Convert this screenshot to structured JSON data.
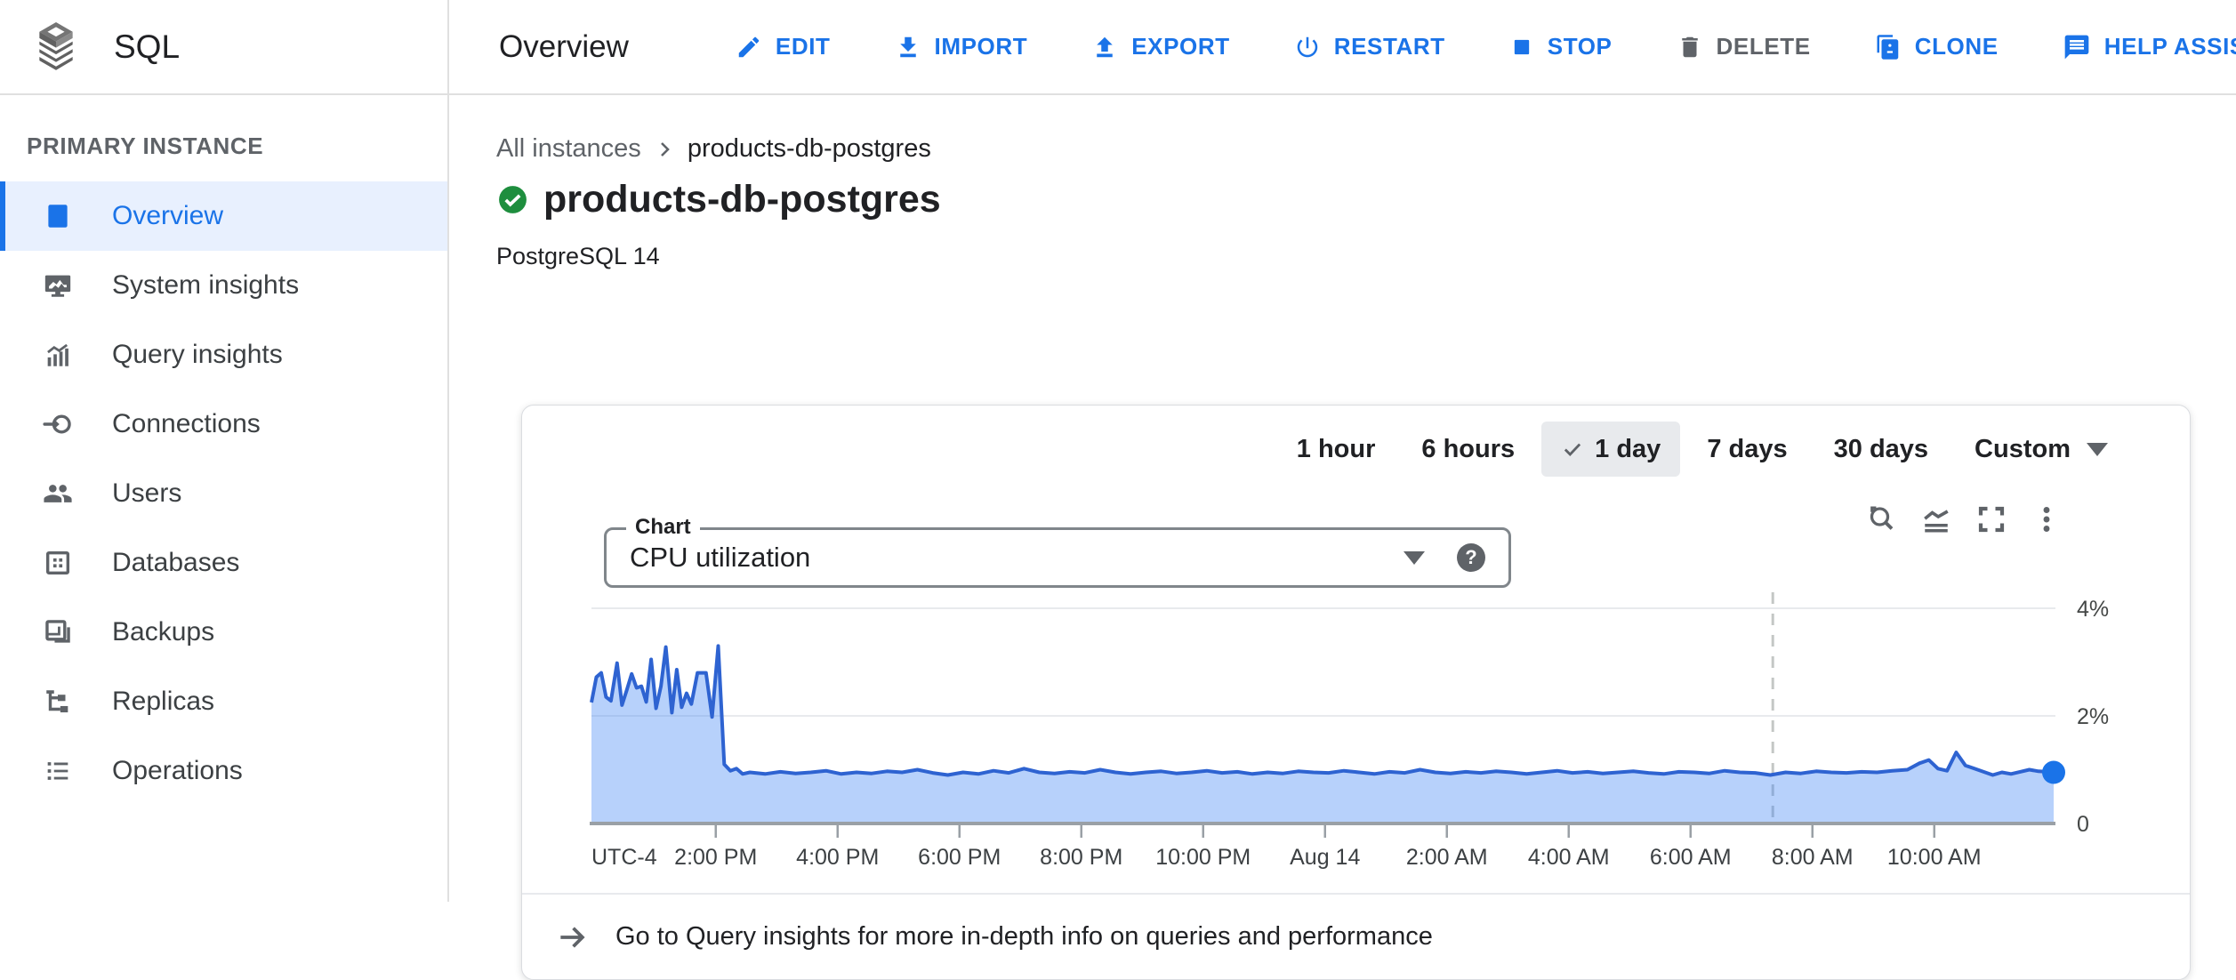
{
  "header": {
    "product": "SQL",
    "page_title": "Overview",
    "actions": [
      {
        "label": "EDIT",
        "icon": "pencil-icon",
        "disabled": false
      },
      {
        "label": "IMPORT",
        "icon": "import-icon",
        "disabled": false
      },
      {
        "label": "EXPORT",
        "icon": "export-icon",
        "disabled": false
      },
      {
        "label": "RESTART",
        "icon": "power-icon",
        "disabled": false
      },
      {
        "label": "STOP",
        "icon": "stop-icon",
        "disabled": false
      },
      {
        "label": "DELETE",
        "icon": "trash-icon",
        "disabled": true
      },
      {
        "label": "CLONE",
        "icon": "clone-icon",
        "disabled": false
      },
      {
        "label": "HELP ASSISTANT",
        "icon": "chat-icon",
        "disabled": false
      }
    ]
  },
  "sidebar": {
    "section": "PRIMARY INSTANCE",
    "items": [
      {
        "label": "Overview",
        "icon": "instance-icon",
        "selected": true
      },
      {
        "label": "System insights",
        "icon": "monitor-chart-icon",
        "selected": false
      },
      {
        "label": "Query insights",
        "icon": "bar-trend-icon",
        "selected": false
      },
      {
        "label": "Connections",
        "icon": "plug-icon",
        "selected": false
      },
      {
        "label": "Users",
        "icon": "people-icon",
        "selected": false
      },
      {
        "label": "Databases",
        "icon": "database-grid-icon",
        "selected": false
      },
      {
        "label": "Backups",
        "icon": "backup-icon",
        "selected": false
      },
      {
        "label": "Replicas",
        "icon": "tree-icon",
        "selected": false
      },
      {
        "label": "Operations",
        "icon": "list-icon",
        "selected": false
      }
    ]
  },
  "breadcrumb": {
    "parent": "All instances",
    "current": "products-db-postgres"
  },
  "instance": {
    "name": "products-db-postgres",
    "status": "healthy",
    "status_color": "#1e8e3e",
    "version": "PostgreSQL 14"
  },
  "time_range": {
    "options": [
      "1 hour",
      "6 hours",
      "1 day",
      "7 days",
      "30 days"
    ],
    "selected": "1 day",
    "selected_index": 2,
    "custom_label": "Custom"
  },
  "chart_controls": {
    "label": "Chart",
    "selected_metric": "CPU utilization",
    "help": "?"
  },
  "footer_link": {
    "text": "Go to Query insights for more in-depth info on queries and performance"
  },
  "chart_data": {
    "type": "area",
    "title": "CPU utilization",
    "unit": "%",
    "ylabel": "CPU utilization (%)",
    "ylim": [
      0,
      4.3
    ],
    "grid": true,
    "y_ticks": [
      {
        "label": "4%",
        "value": 4
      },
      {
        "label": "2%",
        "value": 2
      },
      {
        "label": "0",
        "value": 0
      }
    ],
    "x_axis_note": "UTC-4",
    "x_ticks": [
      {
        "label": "2:00 PM",
        "t": 2.04
      },
      {
        "label": "4:00 PM",
        "t": 4.04
      },
      {
        "label": "6:00 PM",
        "t": 6.04
      },
      {
        "label": "8:00 PM",
        "t": 8.04
      },
      {
        "label": "10:00 PM",
        "t": 10.04
      },
      {
        "label": "Aug 14",
        "t": 12.04
      },
      {
        "label": "2:00 AM",
        "t": 14.04
      },
      {
        "label": "4:00 AM",
        "t": 16.04
      },
      {
        "label": "6:00 AM",
        "t": 18.04
      },
      {
        "label": "8:00 AM",
        "t": 20.04
      },
      {
        "label": "10:00 AM",
        "t": 22.04
      }
    ],
    "time_span_hours": 24,
    "dashed_marker_t": 19.39,
    "line_color": "#2e63d1",
    "fill_color": "rgba(66,133,244,0.38)",
    "dot_color": "#1a73e8",
    "series": [
      {
        "name": "CPU utilization (%)",
        "points": [
          [
            0.0,
            2.25
          ],
          [
            0.08,
            2.72
          ],
          [
            0.16,
            2.8
          ],
          [
            0.24,
            2.35
          ],
          [
            0.32,
            2.28
          ],
          [
            0.42,
            2.98
          ],
          [
            0.5,
            2.2
          ],
          [
            0.58,
            2.48
          ],
          [
            0.66,
            2.78
          ],
          [
            0.74,
            2.52
          ],
          [
            0.82,
            2.55
          ],
          [
            0.9,
            2.26
          ],
          [
            0.98,
            3.05
          ],
          [
            1.06,
            2.14
          ],
          [
            1.14,
            2.55
          ],
          [
            1.22,
            3.28
          ],
          [
            1.32,
            2.06
          ],
          [
            1.4,
            2.86
          ],
          [
            1.48,
            2.16
          ],
          [
            1.56,
            2.42
          ],
          [
            1.64,
            2.22
          ],
          [
            1.74,
            2.8
          ],
          [
            1.88,
            2.8
          ],
          [
            1.98,
            1.98
          ],
          [
            2.08,
            3.3
          ],
          [
            2.18,
            1.1
          ],
          [
            2.28,
            0.98
          ],
          [
            2.38,
            1.02
          ],
          [
            2.48,
            0.92
          ],
          [
            2.6,
            0.95
          ],
          [
            2.85,
            0.92
          ],
          [
            3.1,
            0.96
          ],
          [
            3.35,
            0.93
          ],
          [
            3.6,
            0.95
          ],
          [
            3.85,
            0.98
          ],
          [
            4.1,
            0.92
          ],
          [
            4.35,
            0.95
          ],
          [
            4.6,
            0.93
          ],
          [
            4.85,
            0.97
          ],
          [
            5.1,
            0.95
          ],
          [
            5.35,
            1.0
          ],
          [
            5.6,
            0.94
          ],
          [
            5.85,
            0.9
          ],
          [
            6.1,
            0.95
          ],
          [
            6.35,
            0.92
          ],
          [
            6.6,
            0.98
          ],
          [
            6.85,
            0.94
          ],
          [
            7.1,
            1.02
          ],
          [
            7.35,
            0.95
          ],
          [
            7.6,
            0.93
          ],
          [
            7.85,
            0.96
          ],
          [
            8.1,
            0.94
          ],
          [
            8.35,
            1.0
          ],
          [
            8.6,
            0.95
          ],
          [
            8.85,
            0.92
          ],
          [
            9.1,
            0.95
          ],
          [
            9.35,
            0.97
          ],
          [
            9.6,
            0.93
          ],
          [
            9.85,
            0.95
          ],
          [
            10.1,
            0.98
          ],
          [
            10.35,
            0.94
          ],
          [
            10.6,
            0.96
          ],
          [
            10.85,
            0.92
          ],
          [
            11.1,
            0.95
          ],
          [
            11.35,
            0.93
          ],
          [
            11.6,
            0.97
          ],
          [
            11.85,
            0.95
          ],
          [
            12.1,
            0.94
          ],
          [
            12.35,
            0.98
          ],
          [
            12.6,
            0.95
          ],
          [
            12.85,
            0.92
          ],
          [
            13.1,
            0.96
          ],
          [
            13.35,
            0.94
          ],
          [
            13.6,
            1.0
          ],
          [
            13.85,
            0.95
          ],
          [
            14.1,
            0.93
          ],
          [
            14.35,
            0.96
          ],
          [
            14.6,
            0.94
          ],
          [
            14.85,
            0.97
          ],
          [
            15.1,
            0.95
          ],
          [
            15.35,
            0.92
          ],
          [
            15.6,
            0.95
          ],
          [
            15.85,
            0.98
          ],
          [
            16.1,
            0.94
          ],
          [
            16.35,
            0.96
          ],
          [
            16.6,
            0.93
          ],
          [
            16.85,
            0.95
          ],
          [
            17.1,
            0.97
          ],
          [
            17.35,
            0.94
          ],
          [
            17.6,
            0.92
          ],
          [
            17.85,
            0.96
          ],
          [
            18.1,
            0.95
          ],
          [
            18.35,
            0.93
          ],
          [
            18.6,
            0.98
          ],
          [
            18.85,
            0.95
          ],
          [
            19.1,
            0.94
          ],
          [
            19.35,
            0.9
          ],
          [
            19.6,
            0.95
          ],
          [
            19.85,
            0.93
          ],
          [
            20.1,
            0.97
          ],
          [
            20.35,
            0.95
          ],
          [
            20.6,
            0.94
          ],
          [
            20.85,
            0.96
          ],
          [
            21.1,
            0.95
          ],
          [
            21.35,
            0.98
          ],
          [
            21.6,
            1.0
          ],
          [
            21.8,
            1.12
          ],
          [
            21.95,
            1.18
          ],
          [
            22.1,
            1.02
          ],
          [
            22.25,
            0.98
          ],
          [
            22.4,
            1.32
          ],
          [
            22.55,
            1.08
          ],
          [
            22.7,
            1.02
          ],
          [
            22.85,
            0.96
          ],
          [
            23.0,
            0.9
          ],
          [
            23.15,
            0.95
          ],
          [
            23.3,
            0.92
          ],
          [
            23.45,
            0.96
          ],
          [
            23.6,
            1.0
          ],
          [
            23.75,
            0.97
          ],
          [
            23.9,
            0.96
          ],
          [
            24.0,
            0.95
          ]
        ]
      }
    ]
  }
}
